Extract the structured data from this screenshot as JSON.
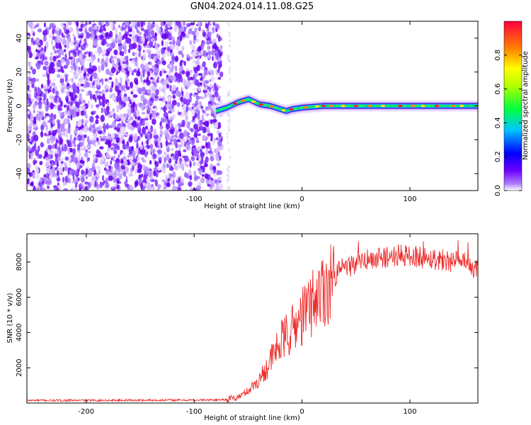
{
  "title": "GN04.2024.014.11.08.G25",
  "chart_data": [
    {
      "type": "heatmap",
      "title": "GN04.2024.014.11.08.G25",
      "xlabel": "Height of straight line (km)",
      "ylabel": "Frequency (Hz)",
      "xlim": [
        -255,
        163
      ],
      "ylim": [
        -50,
        50
      ],
      "x_ticks": [
        -200,
        -100,
        0,
        100
      ],
      "y_ticks": [
        -40,
        -20,
        0,
        20,
        40
      ],
      "noise_region_x": [
        -255,
        -80
      ],
      "signal_track": {
        "x": [
          -80,
          -70,
          -60,
          -50,
          -40,
          -30,
          -20,
          -15,
          -10,
          0,
          20,
          40,
          60,
          80,
          100,
          120,
          140,
          163
        ],
        "y": [
          -3,
          -1,
          2,
          4,
          1,
          0,
          -2,
          -3,
          -2,
          -1,
          0,
          0,
          0,
          0,
          0,
          0,
          0,
          0
        ]
      },
      "colorbar": {
        "label": "Normalized spectral amplitude",
        "range": [
          0.0,
          1.0
        ],
        "ticks": [
          0.0,
          0.2,
          0.4,
          0.6,
          0.8
        ],
        "colors": [
          "#ffffff",
          "#6a00ff",
          "#0000ff",
          "#00c8ff",
          "#00ff40",
          "#ffff00",
          "#ff8000",
          "#ff0040"
        ]
      }
    },
    {
      "type": "line",
      "xlabel": "Height of straight line (km)",
      "ylabel": "SNR (10 * v/v)",
      "xlim": [
        -255,
        163
      ],
      "ylim": [
        0,
        9600
      ],
      "x_ticks": [
        -200,
        -100,
        0,
        100
      ],
      "y_ticks": [
        2000,
        4000,
        6000,
        8000
      ],
      "grid": false,
      "series": [
        {
          "color": "#ee2a2a",
          "x": [
            -255,
            -200,
            -150,
            -100,
            -80,
            -70,
            -60,
            -55,
            -50,
            -45,
            -40,
            -35,
            -30,
            -25,
            -20,
            -15,
            -10,
            -5,
            0,
            10,
            20,
            30,
            40,
            50,
            60,
            70,
            80,
            90,
            100,
            110,
            120,
            130,
            140,
            150,
            163
          ],
          "y": [
            150,
            150,
            160,
            170,
            180,
            200,
            300,
            500,
            700,
            1000,
            1300,
            1800,
            2300,
            2900,
            3400,
            3800,
            4100,
            4500,
            4900,
            5800,
            6500,
            7200,
            7700,
            7900,
            8100,
            8200,
            8300,
            8350,
            8350,
            8300,
            8200,
            8150,
            8050,
            7900,
            7500
          ]
        }
      ]
    }
  ]
}
